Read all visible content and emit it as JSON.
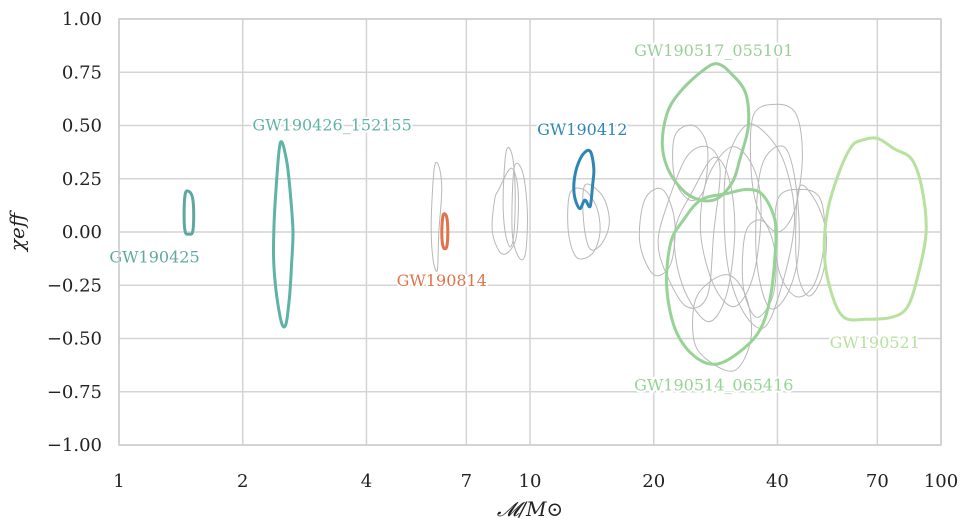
{
  "chart_data": {
    "type": "scatter",
    "xscale": "log",
    "xlim": [
      1,
      100
    ],
    "ylim": [
      -1.0,
      1.0
    ],
    "grid": true,
    "legend": "none",
    "xlabel": "𝓜/M⊙",
    "ylabel": "χeff",
    "x_ticks": [
      1,
      2,
      4,
      7,
      10,
      20,
      40,
      70,
      100
    ],
    "x_tick_labels": [
      "1",
      "2",
      "4",
      "7",
      "10",
      "20",
      "40",
      "70",
      "100"
    ],
    "y_ticks": [
      1.0,
      0.75,
      0.5,
      0.25,
      0.0,
      -0.25,
      -0.5,
      -0.75,
      -1.0
    ],
    "y_tick_labels": [
      "1.00",
      "0.75",
      "0.50",
      "0.25",
      "0.00",
      "−0.25",
      "−0.50",
      "−0.75",
      "−1.00"
    ],
    "highlighted": [
      {
        "name": "GW190425",
        "color": "#5fa7a0",
        "label_at": [
          1.22,
          -0.12
        ],
        "contour": [
          [
            1.45,
            0.18
          ],
          [
            1.48,
            0.19
          ],
          [
            1.51,
            0.16
          ],
          [
            1.52,
            0.08
          ],
          [
            1.51,
            0.0
          ],
          [
            1.48,
            -0.01
          ],
          [
            1.45,
            0.0
          ],
          [
            1.44,
            0.08
          ],
          [
            1.45,
            0.18
          ]
        ]
      },
      {
        "name": "GW190426_152155",
        "color": "#5fb3a6",
        "label_at": [
          3.3,
          0.5
        ],
        "contour": [
          [
            2.47,
            0.42
          ],
          [
            2.56,
            0.33
          ],
          [
            2.62,
            0.15
          ],
          [
            2.65,
            0.0
          ],
          [
            2.63,
            -0.15
          ],
          [
            2.6,
            -0.3
          ],
          [
            2.55,
            -0.43
          ],
          [
            2.49,
            -0.43
          ],
          [
            2.42,
            -0.3
          ],
          [
            2.38,
            -0.15
          ],
          [
            2.38,
            0.0
          ],
          [
            2.41,
            0.2
          ],
          [
            2.47,
            0.42
          ]
        ]
      },
      {
        "name": "GW190814",
        "color": "#e0734a",
        "label_at": [
          6.1,
          -0.23
        ],
        "contour": [
          [
            6.15,
            0.08
          ],
          [
            6.27,
            0.07
          ],
          [
            6.31,
            0.0
          ],
          [
            6.27,
            -0.07
          ],
          [
            6.15,
            -0.07
          ],
          [
            6.1,
            0.0
          ],
          [
            6.15,
            0.08
          ]
        ]
      },
      {
        "name": "GW190412",
        "color": "#2e86b5",
        "label_at": [
          13.4,
          0.48
        ],
        "contour": [
          [
            13.4,
            0.36
          ],
          [
            14.0,
            0.38
          ],
          [
            14.3,
            0.3
          ],
          [
            14.2,
            0.22
          ],
          [
            14.0,
            0.12
          ],
          [
            13.6,
            0.15
          ],
          [
            13.2,
            0.11
          ],
          [
            12.8,
            0.18
          ],
          [
            12.9,
            0.28
          ],
          [
            13.4,
            0.36
          ]
        ]
      },
      {
        "name": "GW190517_055101",
        "color": "#98cf98",
        "label_at": [
          28.0,
          0.85
        ],
        "contour": [
          [
            23.0,
            0.65
          ],
          [
            26.0,
            0.75
          ],
          [
            28.5,
            0.79
          ],
          [
            31.0,
            0.74
          ],
          [
            33.5,
            0.65
          ],
          [
            34.0,
            0.5
          ],
          [
            32.5,
            0.35
          ],
          [
            31.0,
            0.23
          ],
          [
            28.0,
            0.15
          ],
          [
            24.5,
            0.17
          ],
          [
            22.0,
            0.27
          ],
          [
            21.0,
            0.4
          ],
          [
            21.5,
            0.55
          ],
          [
            23.0,
            0.65
          ]
        ]
      },
      {
        "name": "GW190514_065416",
        "color": "#95d495",
        "label_at": [
          28.0,
          -0.72
        ],
        "contour": [
          [
            26.0,
            0.15
          ],
          [
            30.0,
            0.18
          ],
          [
            34.0,
            0.2
          ],
          [
            37.0,
            0.17
          ],
          [
            39.5,
            0.05
          ],
          [
            39.5,
            -0.1
          ],
          [
            38.5,
            -0.3
          ],
          [
            36.5,
            -0.45
          ],
          [
            33.0,
            -0.55
          ],
          [
            28.5,
            -0.62
          ],
          [
            25.0,
            -0.58
          ],
          [
            22.5,
            -0.45
          ],
          [
            21.5,
            -0.25
          ],
          [
            22.0,
            -0.05
          ],
          [
            23.5,
            0.05
          ],
          [
            26.0,
            0.15
          ]
        ]
      },
      {
        "name": "GW190521",
        "color": "#b7e19e",
        "label_at": [
          69.0,
          -0.52
        ],
        "contour": [
          [
            64.0,
            0.43
          ],
          [
            70.0,
            0.44
          ],
          [
            77.0,
            0.39
          ],
          [
            85.0,
            0.34
          ],
          [
            90.0,
            0.2
          ],
          [
            92.0,
            0.0
          ],
          [
            88.0,
            -0.2
          ],
          [
            83.0,
            -0.35
          ],
          [
            76.0,
            -0.4
          ],
          [
            66.0,
            -0.41
          ],
          [
            58.0,
            -0.4
          ],
          [
            54.0,
            -0.28
          ],
          [
            52.0,
            -0.1
          ],
          [
            53.0,
            0.1
          ],
          [
            56.5,
            0.28
          ],
          [
            60.5,
            0.4
          ],
          [
            64.0,
            0.43
          ]
        ]
      }
    ],
    "background_color": "#b8b8b8",
    "background": [
      [
        [
          5.85,
          0.3
        ],
        [
          6.0,
          0.31
        ],
        [
          6.1,
          0.2
        ],
        [
          6.0,
          0.0
        ],
        [
          5.95,
          -0.18
        ],
        [
          5.8,
          -0.12
        ],
        [
          5.75,
          0.05
        ],
        [
          5.85,
          0.3
        ]
      ],
      [
        [
          8.4,
          0.2
        ],
        [
          9.0,
          0.3
        ],
        [
          9.35,
          0.2
        ],
        [
          9.3,
          0.0
        ],
        [
          9.0,
          -0.08
        ],
        [
          8.5,
          -0.1
        ],
        [
          8.1,
          0.0
        ],
        [
          8.2,
          0.15
        ],
        [
          8.4,
          0.2
        ]
      ],
      [
        [
          8.75,
          0.38
        ],
        [
          9.05,
          0.36
        ],
        [
          9.2,
          0.2
        ],
        [
          9.15,
          0.0
        ],
        [
          8.95,
          -0.07
        ],
        [
          8.7,
          0.0
        ],
        [
          8.6,
          0.15
        ],
        [
          8.75,
          0.38
        ]
      ],
      [
        [
          9.15,
          0.3
        ],
        [
          9.6,
          0.28
        ],
        [
          9.85,
          0.1
        ],
        [
          9.75,
          -0.1
        ],
        [
          9.4,
          -0.12
        ],
        [
          9.05,
          0.0
        ],
        [
          9.15,
          0.3
        ]
      ],
      [
        [
          12.5,
          0.18
        ],
        [
          13.5,
          0.2
        ],
        [
          14.5,
          0.12
        ],
        [
          14.8,
          0.0
        ],
        [
          14.2,
          -0.1
        ],
        [
          13.0,
          -0.12
        ],
        [
          12.4,
          0.0
        ],
        [
          12.5,
          0.18
        ]
      ],
      [
        [
          13.6,
          0.22
        ],
        [
          15.0,
          0.17
        ],
        [
          15.6,
          0.05
        ],
        [
          15.0,
          -0.05
        ],
        [
          14.0,
          -0.08
        ],
        [
          13.5,
          0.05
        ],
        [
          13.6,
          0.22
        ]
      ],
      [
        [
          21.5,
          0.12
        ],
        [
          24.0,
          0.35
        ],
        [
          27.0,
          0.4
        ],
        [
          29.0,
          0.3
        ],
        [
          28.0,
          0.0
        ],
        [
          27.0,
          -0.3
        ],
        [
          24.0,
          -0.35
        ],
        [
          21.5,
          -0.2
        ],
        [
          20.5,
          -0.05
        ],
        [
          21.5,
          0.12
        ]
      ],
      [
        [
          25.0,
          0.2
        ],
        [
          28.0,
          0.35
        ],
        [
          30.5,
          0.25
        ],
        [
          31.5,
          0.0
        ],
        [
          30.0,
          -0.3
        ],
        [
          27.0,
          -0.42
        ],
        [
          23.5,
          -0.25
        ],
        [
          22.5,
          0.0
        ],
        [
          25.0,
          0.2
        ]
      ],
      [
        [
          27.0,
          0.25
        ],
        [
          31.0,
          0.4
        ],
        [
          35.0,
          0.3
        ],
        [
          36.5,
          0.1
        ],
        [
          35.0,
          -0.2
        ],
        [
          31.5,
          -0.35
        ],
        [
          28.0,
          -0.25
        ],
        [
          26.0,
          0.0
        ],
        [
          27.0,
          0.25
        ]
      ],
      [
        [
          30.0,
          0.3
        ],
        [
          33.5,
          0.5
        ],
        [
          38.0,
          0.45
        ],
        [
          42.0,
          0.3
        ],
        [
          44.0,
          0.05
        ],
        [
          41.0,
          -0.25
        ],
        [
          37.0,
          -0.45
        ],
        [
          32.5,
          -0.35
        ],
        [
          30.0,
          -0.1
        ],
        [
          30.0,
          0.3
        ]
      ],
      [
        [
          35.0,
          0.55
        ],
        [
          40.0,
          0.6
        ],
        [
          44.5,
          0.55
        ],
        [
          46.0,
          0.35
        ],
        [
          44.0,
          0.1
        ],
        [
          40.0,
          0.0
        ],
        [
          36.0,
          0.1
        ],
        [
          34.5,
          0.3
        ],
        [
          35.0,
          0.55
        ]
      ],
      [
        [
          36.5,
          0.3
        ],
        [
          41.5,
          0.4
        ],
        [
          44.5,
          0.2
        ],
        [
          45.0,
          -0.1
        ],
        [
          42.0,
          -0.3
        ],
        [
          38.0,
          -0.35
        ],
        [
          35.5,
          -0.1
        ],
        [
          36.5,
          0.3
        ]
      ],
      [
        [
          40.0,
          0.15
        ],
        [
          46.0,
          0.2
        ],
        [
          51.0,
          0.15
        ],
        [
          52.0,
          -0.05
        ],
        [
          49.0,
          -0.25
        ],
        [
          44.0,
          -0.3
        ],
        [
          40.0,
          -0.15
        ],
        [
          40.0,
          0.15
        ]
      ],
      [
        [
          22.5,
          0.45
        ],
        [
          25.0,
          0.5
        ],
        [
          27.0,
          0.4
        ],
        [
          26.5,
          0.2
        ],
        [
          24.5,
          0.15
        ],
        [
          22.5,
          0.25
        ],
        [
          22.5,
          0.45
        ]
      ],
      [
        [
          19.0,
          0.15
        ],
        [
          21.0,
          0.2
        ],
        [
          22.5,
          0.05
        ],
        [
          22.0,
          -0.15
        ],
        [
          20.0,
          -0.2
        ],
        [
          18.5,
          -0.05
        ],
        [
          19.0,
          0.15
        ]
      ],
      [
        [
          25.5,
          -0.3
        ],
        [
          30.0,
          -0.2
        ],
        [
          33.5,
          -0.3
        ],
        [
          34.5,
          -0.5
        ],
        [
          31.5,
          -0.65
        ],
        [
          27.0,
          -0.6
        ],
        [
          25.0,
          -0.5
        ],
        [
          25.5,
          -0.3
        ]
      ],
      [
        [
          45.0,
          0.2
        ],
        [
          49.0,
          0.16
        ],
        [
          52.5,
          0.0
        ],
        [
          51.5,
          -0.2
        ],
        [
          47.5,
          -0.3
        ],
        [
          44.5,
          -0.15
        ],
        [
          45.0,
          0.2
        ]
      ],
      [
        [
          33.5,
          0.0
        ],
        [
          37.0,
          0.05
        ],
        [
          39.5,
          -0.1
        ],
        [
          39.0,
          -0.3
        ],
        [
          35.5,
          -0.4
        ],
        [
          33.0,
          -0.25
        ],
        [
          33.5,
          0.0
        ]
      ]
    ]
  }
}
